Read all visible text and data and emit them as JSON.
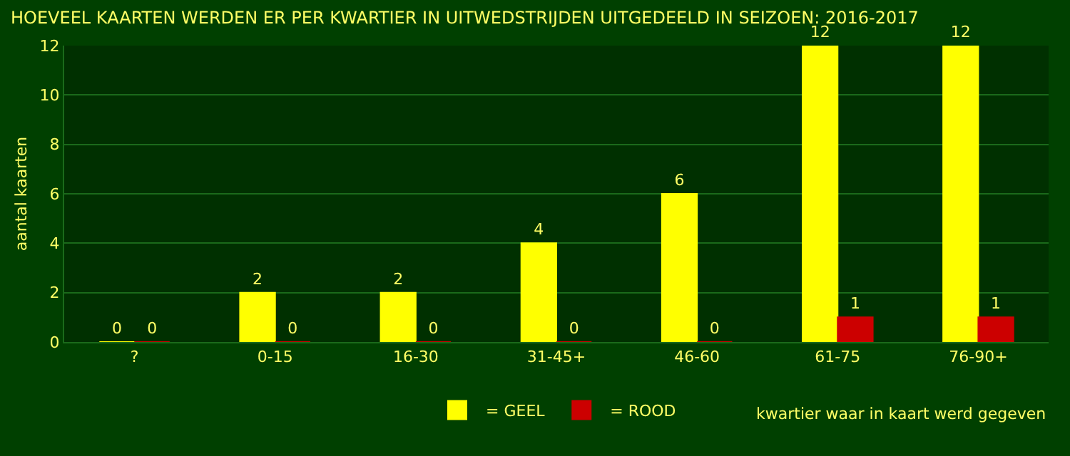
{
  "chart_data": {
    "type": "bar",
    "title": "HOEVEEL KAARTEN WERDEN ER PER KWARTIER IN UITWEDSTRIJDEN UITGEDEELD IN SEIZOEN: 2016-2017",
    "xlabel": "kwartier waar in kaart werd gegeven",
    "ylabel": "aantal kaarten",
    "categories": [
      "?",
      "0-15",
      "16-30",
      "31-45+",
      "46-60",
      "61-75",
      "76-90+"
    ],
    "series": [
      {
        "name": "= GEEL",
        "color": "#ffff00",
        "values": [
          0,
          2,
          2,
          4,
          6,
          12,
          12
        ]
      },
      {
        "name": "= ROOD",
        "color": "#cc0000",
        "values": [
          0,
          0,
          0,
          0,
          0,
          1,
          1
        ]
      }
    ],
    "ylim": [
      0,
      12
    ],
    "yticks": [
      0,
      2,
      4,
      6,
      8,
      10,
      12
    ],
    "grid": "y",
    "legend": "bottom",
    "data_labels": true
  }
}
